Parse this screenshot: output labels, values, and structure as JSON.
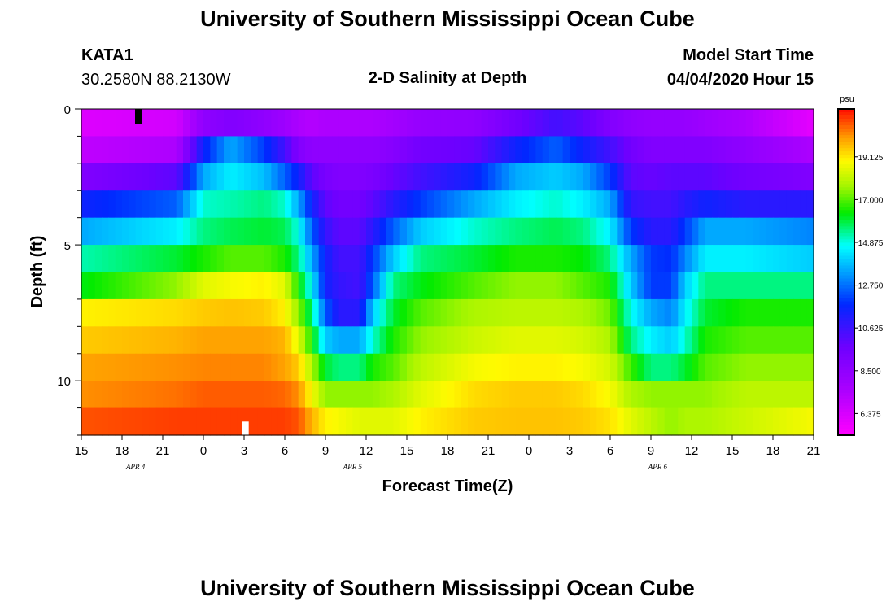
{
  "header": {
    "title": "University of Southern Mississippi Ocean Cube",
    "station_id": "KATA1",
    "station_coords": "30.2580N 88.2130W",
    "plot_title": "2-D Salinity at Depth",
    "model_label": "Model Start Time",
    "model_time": "04/04/2020 Hour 15"
  },
  "footer": {
    "title": "University of Southern Mississippi Ocean Cube"
  },
  "chart_data": {
    "type": "heatmap",
    "title": "2-D Salinity at Depth",
    "xlabel": "Forecast Time(Z)",
    "ylabel": "Depth (ft)",
    "x_start_hour": 15,
    "x_end_hour": 69,
    "x_step_hours": 0.5,
    "ylim": [
      0,
      12
    ],
    "y_layers": 12,
    "x_ticks": [
      "15",
      "18",
      "21",
      "0",
      "3",
      "6",
      "9",
      "12",
      "15",
      "18",
      "21",
      "0",
      "3",
      "6",
      "9",
      "12",
      "15",
      "18",
      "21"
    ],
    "y_ticks": [
      "0",
      "5",
      "10"
    ],
    "date_labels": [
      {
        "text": "APR 4",
        "hour": 19
      },
      {
        "text": "APR 5",
        "hour": 35
      },
      {
        "text": "APR 6",
        "hour": 57.5
      }
    ],
    "colorbar": {
      "unit": "psu",
      "range": [
        5.3,
        21.5
      ],
      "ticks": [
        "19.125",
        "17.000",
        "14.875",
        "12.750",
        "10.625",
        "8.500",
        "6.375"
      ],
      "tick_values": [
        19.125,
        17.0,
        14.875,
        12.75,
        10.625,
        8.5,
        6.375
      ]
    },
    "salinity_profiles": [
      {
        "hour": 15,
        "values": [
          6.2,
          7.0,
          9.0,
          11.5,
          13.5,
          15.2,
          16.2,
          19.0,
          19.5,
          20.0,
          20.2,
          20.8
        ]
      },
      {
        "hour": 22,
        "values": [
          6.5,
          7.5,
          10.0,
          12.5,
          14.5,
          16.0,
          17.5,
          19.3,
          19.8,
          20.2,
          20.5,
          21.0
        ]
      },
      {
        "hour": 24,
        "values": [
          8.5,
          11.5,
          13.5,
          15.0,
          15.5,
          16.5,
          18.5,
          19.5,
          20.0,
          20.3,
          20.7,
          21.0
        ]
      },
      {
        "hour": 26,
        "values": [
          9.0,
          13.5,
          14.5,
          15.2,
          15.8,
          17.0,
          18.8,
          19.6,
          20.0,
          20.3,
          20.7,
          21.0
        ]
      },
      {
        "hour": 28.5,
        "values": [
          8.5,
          12.0,
          13.8,
          15.5,
          16.0,
          17.0,
          19.0,
          19.5,
          20.0,
          20.3,
          20.7,
          21.0
        ]
      },
      {
        "hour": 30,
        "values": [
          8.0,
          10.5,
          12.5,
          15.0,
          15.8,
          16.5,
          18.5,
          19.0,
          19.8,
          20.0,
          20.6,
          21.0
        ]
      },
      {
        "hour": 31,
        "values": [
          7.5,
          9.0,
          11.5,
          13.5,
          14.8,
          15.5,
          16.5,
          17.5,
          18.5,
          19.5,
          20.2,
          20.8
        ]
      },
      {
        "hour": 32,
        "values": [
          7.3,
          8.5,
          10.0,
          11.5,
          12.5,
          13.5,
          14.5,
          15.5,
          16.5,
          17.8,
          18.8,
          19.8
        ]
      },
      {
        "hour": 33,
        "values": [
          7.5,
          8.5,
          9.3,
          10.0,
          10.8,
          11.5,
          11.5,
          12.5,
          14.0,
          16.0,
          17.5,
          19.0
        ]
      },
      {
        "hour": 34,
        "values": [
          7.5,
          8.5,
          9.0,
          9.5,
          10.0,
          10.5,
          10.8,
          11.0,
          13.5,
          15.5,
          17.5,
          18.8
        ]
      },
      {
        "hour": 35.5,
        "values": [
          7.5,
          8.5,
          9.0,
          9.5,
          10.0,
          10.5,
          10.5,
          11.0,
          13.5,
          15.5,
          17.5,
          18.5
        ]
      },
      {
        "hour": 36.5,
        "values": [
          7.5,
          8.5,
          9.2,
          10.0,
          11.0,
          12.0,
          12.5,
          14.0,
          15.0,
          16.5,
          17.5,
          18.5
        ]
      },
      {
        "hour": 38,
        "values": [
          7.8,
          8.8,
          9.8,
          11.0,
          12.5,
          14.0,
          15.5,
          16.0,
          16.5,
          17.0,
          17.8,
          18.5
        ]
      },
      {
        "hour": 40,
        "values": [
          8.3,
          9.5,
          10.5,
          12.0,
          14.0,
          15.5,
          16.2,
          17.0,
          17.5,
          18.0,
          18.5,
          19.0
        ]
      },
      {
        "hour": 44,
        "values": [
          8.5,
          9.8,
          11.5,
          13.5,
          15.0,
          16.0,
          17.0,
          17.8,
          18.2,
          18.8,
          19.3,
          19.5
        ]
      },
      {
        "hour": 47,
        "values": [
          9.5,
          11.5,
          13.5,
          14.5,
          15.5,
          16.5,
          17.5,
          18.0,
          18.5,
          19.0,
          19.5,
          19.6
        ]
      },
      {
        "hour": 50,
        "values": [
          10.5,
          12.5,
          14.0,
          15.0,
          15.8,
          16.5,
          17.5,
          18.0,
          18.5,
          19.0,
          19.5,
          19.6
        ]
      },
      {
        "hour": 52,
        "values": [
          10.0,
          11.5,
          13.5,
          14.5,
          15.5,
          16.3,
          17.0,
          17.8,
          18.3,
          18.8,
          19.3,
          19.5
        ]
      },
      {
        "hour": 54,
        "values": [
          9.0,
          10.5,
          12.0,
          13.5,
          14.5,
          15.5,
          16.5,
          17.2,
          17.8,
          18.3,
          18.8,
          19.2
        ]
      },
      {
        "hour": 55.5,
        "values": [
          8.5,
          9.5,
          10.0,
          10.8,
          12.0,
          13.5,
          14.0,
          14.8,
          15.5,
          16.8,
          17.8,
          18.5
        ]
      },
      {
        "hour": 57,
        "values": [
          8.3,
          9.0,
          9.8,
          10.5,
          11.0,
          12.0,
          12.0,
          13.5,
          14.5,
          15.5,
          17.5,
          18.0
        ]
      },
      {
        "hour": 58.5,
        "values": [
          8.3,
          9.0,
          10.0,
          10.5,
          11.0,
          11.8,
          12.0,
          13.0,
          14.0,
          15.5,
          17.5,
          17.5
        ]
      },
      {
        "hour": 59.5,
        "values": [
          8.3,
          9.0,
          10.0,
          11.0,
          12.0,
          13.0,
          14.0,
          14.5,
          15.0,
          16.0,
          17.5,
          17.8
        ]
      },
      {
        "hour": 61,
        "values": [
          8.0,
          9.0,
          10.0,
          11.5,
          13.5,
          14.5,
          15.5,
          16.0,
          16.5,
          17.0,
          17.5,
          17.8
        ]
      },
      {
        "hour": 64,
        "values": [
          7.5,
          8.5,
          9.5,
          11.0,
          13.5,
          14.5,
          15.5,
          16.5,
          17.0,
          17.5,
          18.0,
          18.2
        ]
      },
      {
        "hour": 69,
        "values": [
          6.0,
          7.5,
          9.0,
          11.0,
          13.0,
          14.0,
          15.5,
          16.5,
          17.0,
          17.5,
          18.0,
          18.8
        ]
      }
    ],
    "markers": [
      {
        "name": "top-marker",
        "hour": 19.2,
        "depth_top": 0,
        "depth_bottom": 0.55,
        "color": "#000000"
      },
      {
        "name": "bottom-marker",
        "hour": 27.1,
        "depth_top": 11.5,
        "depth_bottom": 12,
        "color": "#ffffff"
      }
    ]
  }
}
